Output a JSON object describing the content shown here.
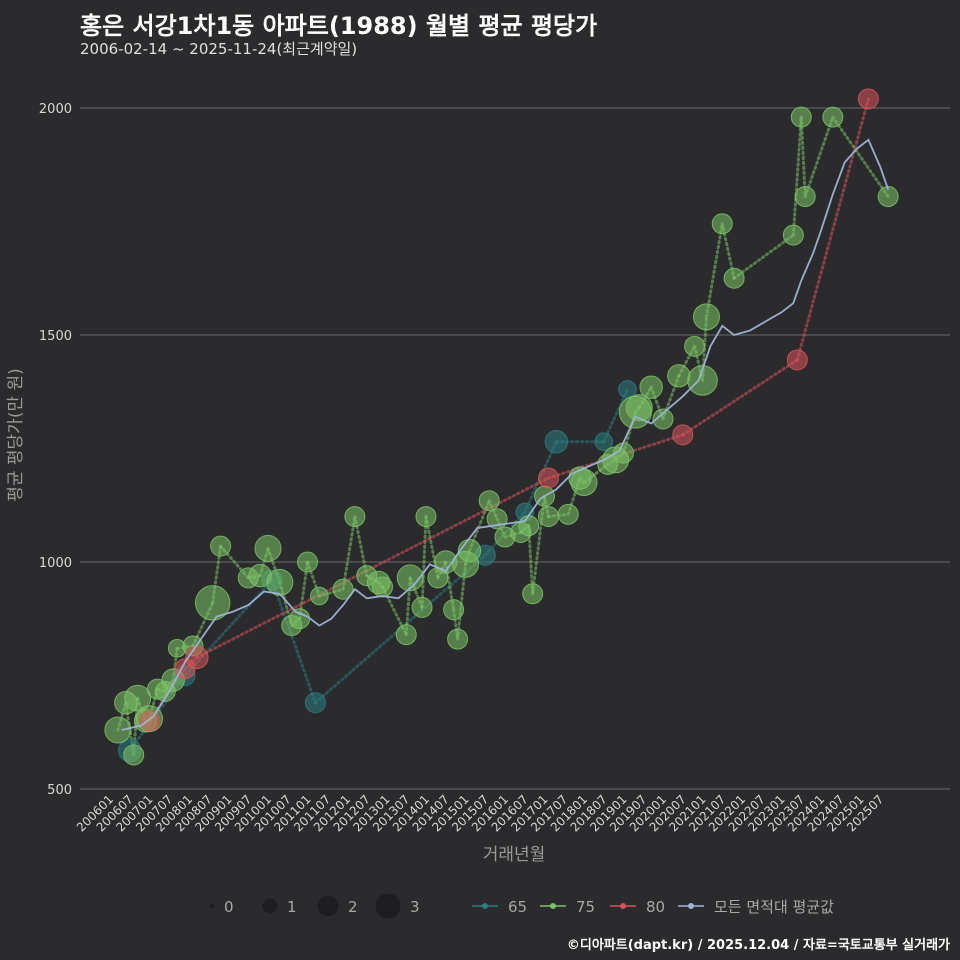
{
  "header": {
    "title": "홍은 서강1차1동 아파트(1988) 월별 평균 평당가",
    "subtitle": "2006-02-14 ~ 2025-11-24(최근계약일)"
  },
  "footer": {
    "credit": "©디아파트(dapt.kr) / 2025.12.04 / 자료=국토교통부 실거래가"
  },
  "colors": {
    "65": "#2a7d80",
    "75": "#7bc466",
    "80": "#d9545a",
    "avg": "#9fb4d8"
  },
  "chart_data": {
    "type": "scatter",
    "xlabel": "거래년월",
    "ylabel": "평균 평당가(만 원)",
    "ylim": [
      500,
      2000
    ],
    "yticks": [
      500,
      1000,
      1500,
      2000
    ],
    "xlim": [
      2006.0,
      2026.0
    ],
    "xticks": [
      "200601",
      "200607",
      "200701",
      "200707",
      "200801",
      "200807",
      "200901",
      "200907",
      "201001",
      "201007",
      "201101",
      "201107",
      "201201",
      "201207",
      "201301",
      "201307",
      "201401",
      "201407",
      "201501",
      "201507",
      "201601",
      "201607",
      "201701",
      "201707",
      "201801",
      "201807",
      "201901",
      "201907",
      "202001",
      "202007",
      "202101",
      "202107",
      "202201",
      "202207",
      "202301",
      "202307",
      "202401",
      "202407",
      "202501",
      "202507"
    ],
    "size_legend": {
      "values": [
        "0",
        "1",
        "2",
        "3"
      ]
    },
    "series_legend": [
      "65",
      "75",
      "80",
      "모든 면적대 평균값"
    ],
    "series": [
      {
        "name": "65",
        "points": [
          {
            "x": 2006.5,
            "y": 585,
            "s": 1.2
          },
          {
            "x": 2007.9,
            "y": 750,
            "s": 1.0
          },
          {
            "x": 2010.1,
            "y": 960,
            "s": 1.0
          },
          {
            "x": 2011.2,
            "y": 690,
            "s": 1.0
          },
          {
            "x": 2015.5,
            "y": 1015,
            "s": 1.0
          },
          {
            "x": 2016.5,
            "y": 1110,
            "s": 0.8
          },
          {
            "x": 2017.3,
            "y": 1265,
            "s": 1.2
          },
          {
            "x": 2018.5,
            "y": 1265,
            "s": 0.8
          },
          {
            "x": 2019.1,
            "y": 1380,
            "s": 0.8
          }
        ]
      },
      {
        "name": "75",
        "points": [
          {
            "x": 2006.2,
            "y": 630,
            "s": 1.5
          },
          {
            "x": 2006.4,
            "y": 690,
            "s": 1.2
          },
          {
            "x": 2006.6,
            "y": 575,
            "s": 1.0
          },
          {
            "x": 2006.7,
            "y": 700,
            "s": 1.5
          },
          {
            "x": 2006.9,
            "y": 650,
            "s": 1.2
          },
          {
            "x": 2007.0,
            "y": 655,
            "s": 1.5
          },
          {
            "x": 2007.2,
            "y": 720,
            "s": 1.0
          },
          {
            "x": 2007.4,
            "y": 715,
            "s": 1.0
          },
          {
            "x": 2007.6,
            "y": 740,
            "s": 1.2
          },
          {
            "x": 2007.7,
            "y": 810,
            "s": 0.8
          },
          {
            "x": 2008.1,
            "y": 815,
            "s": 1.0
          },
          {
            "x": 2008.6,
            "y": 910,
            "s": 2.2
          },
          {
            "x": 2008.8,
            "y": 1035,
            "s": 1.0
          },
          {
            "x": 2009.5,
            "y": 965,
            "s": 1.0
          },
          {
            "x": 2009.8,
            "y": 970,
            "s": 1.2
          },
          {
            "x": 2010.0,
            "y": 1030,
            "s": 1.5
          },
          {
            "x": 2010.3,
            "y": 955,
            "s": 1.5
          },
          {
            "x": 2010.6,
            "y": 860,
            "s": 1.0
          },
          {
            "x": 2010.8,
            "y": 875,
            "s": 1.0
          },
          {
            "x": 2011.0,
            "y": 1000,
            "s": 1.0
          },
          {
            "x": 2011.3,
            "y": 925,
            "s": 0.8
          },
          {
            "x": 2011.9,
            "y": 940,
            "s": 1.0
          },
          {
            "x": 2012.2,
            "y": 1100,
            "s": 1.0
          },
          {
            "x": 2012.5,
            "y": 970,
            "s": 1.0
          },
          {
            "x": 2012.8,
            "y": 955,
            "s": 1.2
          },
          {
            "x": 2012.9,
            "y": 945,
            "s": 1.0
          },
          {
            "x": 2013.5,
            "y": 840,
            "s": 1.0
          },
          {
            "x": 2013.6,
            "y": 965,
            "s": 1.5
          },
          {
            "x": 2013.9,
            "y": 900,
            "s": 1.0
          },
          {
            "x": 2014.0,
            "y": 1100,
            "s": 1.0
          },
          {
            "x": 2014.3,
            "y": 965,
            "s": 1.0
          },
          {
            "x": 2014.5,
            "y": 1000,
            "s": 1.2
          },
          {
            "x": 2014.7,
            "y": 895,
            "s": 1.0
          },
          {
            "x": 2014.8,
            "y": 830,
            "s": 1.0
          },
          {
            "x": 2015.0,
            "y": 995,
            "s": 1.5
          },
          {
            "x": 2015.1,
            "y": 1025,
            "s": 1.2
          },
          {
            "x": 2015.6,
            "y": 1135,
            "s": 1.0
          },
          {
            "x": 2015.8,
            "y": 1095,
            "s": 1.0
          },
          {
            "x": 2016.0,
            "y": 1055,
            "s": 1.0
          },
          {
            "x": 2016.4,
            "y": 1065,
            "s": 1.0
          },
          {
            "x": 2016.6,
            "y": 1080,
            "s": 1.0
          },
          {
            "x": 2016.7,
            "y": 930,
            "s": 1.0
          },
          {
            "x": 2017.0,
            "y": 1145,
            "s": 1.0
          },
          {
            "x": 2017.1,
            "y": 1100,
            "s": 1.0
          },
          {
            "x": 2017.6,
            "y": 1105,
            "s": 1.0
          },
          {
            "x": 2017.9,
            "y": 1185,
            "s": 1.2
          },
          {
            "x": 2018.0,
            "y": 1175,
            "s": 1.5
          },
          {
            "x": 2018.6,
            "y": 1215,
            "s": 1.0
          },
          {
            "x": 2018.8,
            "y": 1225,
            "s": 1.5
          },
          {
            "x": 2019.0,
            "y": 1240,
            "s": 1.0
          },
          {
            "x": 2019.3,
            "y": 1330,
            "s": 2.0
          },
          {
            "x": 2019.4,
            "y": 1340,
            "s": 1.5
          },
          {
            "x": 2019.7,
            "y": 1385,
            "s": 1.2
          },
          {
            "x": 2020.0,
            "y": 1315,
            "s": 1.0
          },
          {
            "x": 2020.4,
            "y": 1410,
            "s": 1.2
          },
          {
            "x": 2020.8,
            "y": 1475,
            "s": 1.0
          },
          {
            "x": 2021.0,
            "y": 1400,
            "s": 1.8
          },
          {
            "x": 2021.1,
            "y": 1540,
            "s": 1.5
          },
          {
            "x": 2021.5,
            "y": 1745,
            "s": 1.0
          },
          {
            "x": 2021.8,
            "y": 1625,
            "s": 1.0
          },
          {
            "x": 2023.3,
            "y": 1720,
            "s": 1.0
          },
          {
            "x": 2023.5,
            "y": 1980,
            "s": 1.0
          },
          {
            "x": 2023.6,
            "y": 1805,
            "s": 1.0
          },
          {
            "x": 2024.3,
            "y": 1980,
            "s": 1.0
          },
          {
            "x": 2025.7,
            "y": 1805,
            "s": 1.0
          }
        ]
      },
      {
        "name": "80",
        "points": [
          {
            "x": 2007.0,
            "y": 650,
            "s": 1.0
          },
          {
            "x": 2007.9,
            "y": 765,
            "s": 1.0
          },
          {
            "x": 2008.2,
            "y": 790,
            "s": 1.2
          },
          {
            "x": 2017.1,
            "y": 1185,
            "s": 1.0
          },
          {
            "x": 2020.5,
            "y": 1280,
            "s": 1.0
          },
          {
            "x": 2023.4,
            "y": 1445,
            "s": 1.0
          },
          {
            "x": 2025.2,
            "y": 2020,
            "s": 1.0
          }
        ]
      },
      {
        "name": "모든 면적대 평균값",
        "line": [
          [
            2006.3,
            630
          ],
          [
            2006.8,
            640
          ],
          [
            2007.1,
            660
          ],
          [
            2007.5,
            715
          ],
          [
            2007.9,
            780
          ],
          [
            2008.3,
            830
          ],
          [
            2008.7,
            880
          ],
          [
            2009.1,
            890
          ],
          [
            2009.5,
            905
          ],
          [
            2009.9,
            935
          ],
          [
            2010.3,
            930
          ],
          [
            2010.7,
            890
          ],
          [
            2011.0,
            880
          ],
          [
            2011.3,
            860
          ],
          [
            2011.6,
            875
          ],
          [
            2011.9,
            905
          ],
          [
            2012.2,
            940
          ],
          [
            2012.5,
            920
          ],
          [
            2012.9,
            925
          ],
          [
            2013.3,
            920
          ],
          [
            2013.7,
            950
          ],
          [
            2014.1,
            995
          ],
          [
            2014.5,
            980
          ],
          [
            2014.9,
            1030
          ],
          [
            2015.3,
            1075
          ],
          [
            2015.7,
            1080
          ],
          [
            2016.1,
            1085
          ],
          [
            2016.5,
            1090
          ],
          [
            2016.9,
            1140
          ],
          [
            2017.3,
            1160
          ],
          [
            2017.7,
            1195
          ],
          [
            2018.1,
            1210
          ],
          [
            2018.5,
            1225
          ],
          [
            2018.9,
            1245
          ],
          [
            2019.3,
            1320
          ],
          [
            2019.7,
            1305
          ],
          [
            2020.1,
            1335
          ],
          [
            2020.5,
            1365
          ],
          [
            2020.9,
            1400
          ],
          [
            2021.2,
            1475
          ],
          [
            2021.5,
            1520
          ],
          [
            2021.8,
            1500
          ],
          [
            2022.2,
            1510
          ],
          [
            2022.6,
            1530
          ],
          [
            2023.0,
            1550
          ],
          [
            2023.3,
            1570
          ],
          [
            2023.5,
            1620
          ],
          [
            2023.8,
            1680
          ],
          [
            2024.0,
            1730
          ],
          [
            2024.3,
            1810
          ],
          [
            2024.6,
            1880
          ],
          [
            2024.9,
            1910
          ],
          [
            2025.2,
            1930
          ],
          [
            2025.5,
            1870
          ],
          [
            2025.7,
            1820
          ]
        ]
      }
    ]
  }
}
